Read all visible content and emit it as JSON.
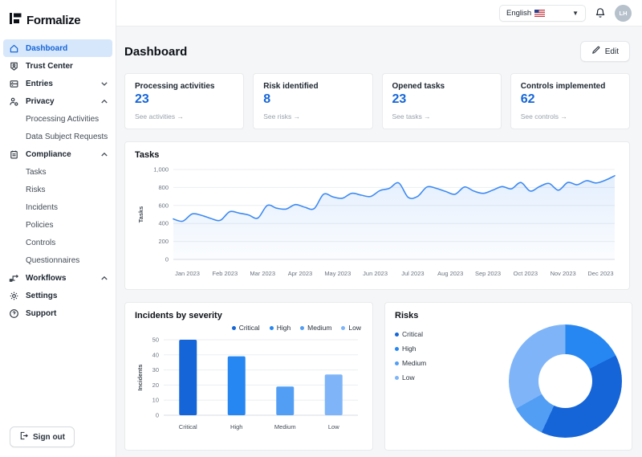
{
  "app": {
    "name": "Formalize"
  },
  "topbar": {
    "language": "English",
    "avatar_initials": "LH"
  },
  "sidebar": {
    "items": [
      {
        "label": "Dashboard",
        "active": true
      },
      {
        "label": "Trust Center"
      },
      {
        "label": "Entries",
        "chevron": "down"
      },
      {
        "label": "Privacy",
        "chevron": "up",
        "children": [
          "Processing Activities",
          "Data Subject Requests"
        ]
      },
      {
        "label": "Compliance",
        "chevron": "up",
        "children": [
          "Tasks",
          "Risks",
          "Incidents",
          "Policies",
          "Controls",
          "Questionnaires"
        ]
      },
      {
        "label": "Workflows",
        "chevron": "up"
      },
      {
        "label": "Settings"
      },
      {
        "label": "Support"
      }
    ],
    "sign_out": "Sign out"
  },
  "page": {
    "title": "Dashboard",
    "edit_button": "Edit"
  },
  "stat_cards": [
    {
      "title": "Processing activities",
      "value": "23",
      "link": "See activities →"
    },
    {
      "title": "Risk identified",
      "value": "8",
      "link": "See risks →"
    },
    {
      "title": "Opened tasks",
      "value": "23",
      "link": "See tasks →"
    },
    {
      "title": "Controls implemented",
      "value": "62",
      "link": "See controls →"
    }
  ],
  "colors": {
    "accent": "#1565d8",
    "line": "#3d8af2",
    "line_fill_top": "rgba(61,138,242,0.14)",
    "line_fill_bottom": "rgba(61,138,242,0.02)",
    "severity": {
      "critical": "#1565d8",
      "high": "#2787f2",
      "medium": "#529ef4",
      "low": "#7fb5f8"
    },
    "grid": "#eceef1",
    "axis": "#d8dbe0",
    "tick_text": "#6b7480"
  },
  "chart_data": [
    {
      "id": "tasks",
      "type": "line",
      "title": "Tasks",
      "ylabel": "Tasks",
      "xlabel": "",
      "x_labels": [
        "Jan 2023",
        "Feb 2023",
        "Mar 2023",
        "Apr 2023",
        "May 2023",
        "Jun 2023",
        "Jul 2023",
        "Aug 2023",
        "Sep 2023",
        "Oct 2023",
        "Nov 2023",
        "Dec 2023"
      ],
      "ylim": [
        0,
        1000
      ],
      "y_ticks": [
        0,
        200,
        400,
        600,
        800,
        1000
      ],
      "y_tick_labels": [
        "0",
        "200",
        "400",
        "600",
        "800",
        "1,000"
      ],
      "grid": true,
      "legend_position": "none",
      "series": [
        {
          "name": "Tasks",
          "values": [
            450,
            425,
            505,
            490,
            455,
            435,
            530,
            515,
            495,
            460,
            600,
            570,
            560,
            610,
            580,
            565,
            725,
            695,
            680,
            735,
            715,
            700,
            765,
            790,
            850,
            690,
            700,
            805,
            790,
            755,
            725,
            805,
            760,
            735,
            770,
            810,
            785,
            855,
            760,
            810,
            845,
            770,
            855,
            830,
            875,
            850,
            880,
            930
          ]
        }
      ]
    },
    {
      "id": "incidents",
      "type": "bar",
      "title": "Incidents by severity",
      "ylabel": "Incidents",
      "xlabel": "",
      "categories": [
        "Critical",
        "High",
        "Medium",
        "Low"
      ],
      "values": [
        50,
        39,
        19,
        27
      ],
      "ylim": [
        0,
        50
      ],
      "y_ticks": [
        0,
        10,
        20,
        30,
        40,
        50
      ],
      "grid": true,
      "legend": [
        "Critical",
        "High",
        "Medium",
        "Low"
      ],
      "legend_position": "top-right"
    },
    {
      "id": "risks",
      "type": "pie",
      "title": "Risks",
      "donut": true,
      "start_angle": "top",
      "direction": "clockwise",
      "legend": [
        "Critical",
        "High",
        "Medium",
        "Low"
      ],
      "legend_position": "left",
      "segments": [
        {
          "label": "High",
          "value": 17.5
        },
        {
          "label": "Critical",
          "value": 39.4
        },
        {
          "label": "Medium",
          "value": 10.0
        },
        {
          "label": "Low",
          "value": 33.1
        }
      ]
    }
  ]
}
